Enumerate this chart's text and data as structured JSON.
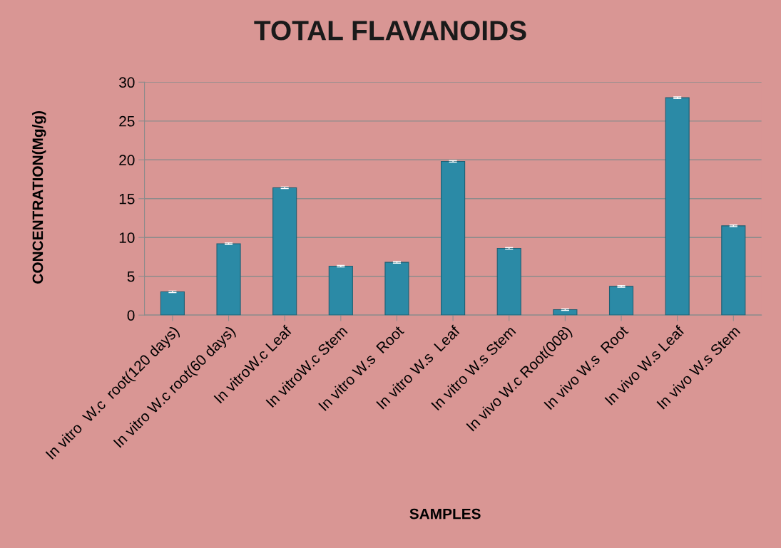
{
  "chart_data": {
    "type": "bar",
    "title": "TOTAL FLAVANOIDS",
    "xlabel": "SAMPLES",
    "ylabel": "CONCENTRATION(Mg/g)",
    "categories": [
      "In vitro  W.c  root(120 days)",
      "In vitro W.c root(60 days)",
      "In vitroW.c Leaf",
      "In vitroW.c Stem",
      "In vitro W.s  Root",
      "In vitro W.s  Leaf",
      "In vitro W.s Stem",
      "In vivo W.c Root(008)",
      "In vivo W.s  Root",
      "In vivo W.s Leaf",
      "In vivo W.s Stem"
    ],
    "values": [
      3.0,
      9.2,
      16.4,
      6.3,
      6.8,
      19.8,
      8.6,
      0.7,
      3.7,
      28.0,
      11.5
    ],
    "errors": [
      0.1,
      0.1,
      0.1,
      0.1,
      0.1,
      0.1,
      0.1,
      0.1,
      0.1,
      0.1,
      0.1
    ],
    "color": "#2b8aa6",
    "ylim": [
      0,
      30
    ],
    "yticks": [
      0,
      5,
      10,
      15,
      20,
      25,
      30
    ],
    "grid": "y",
    "legend": false
  }
}
